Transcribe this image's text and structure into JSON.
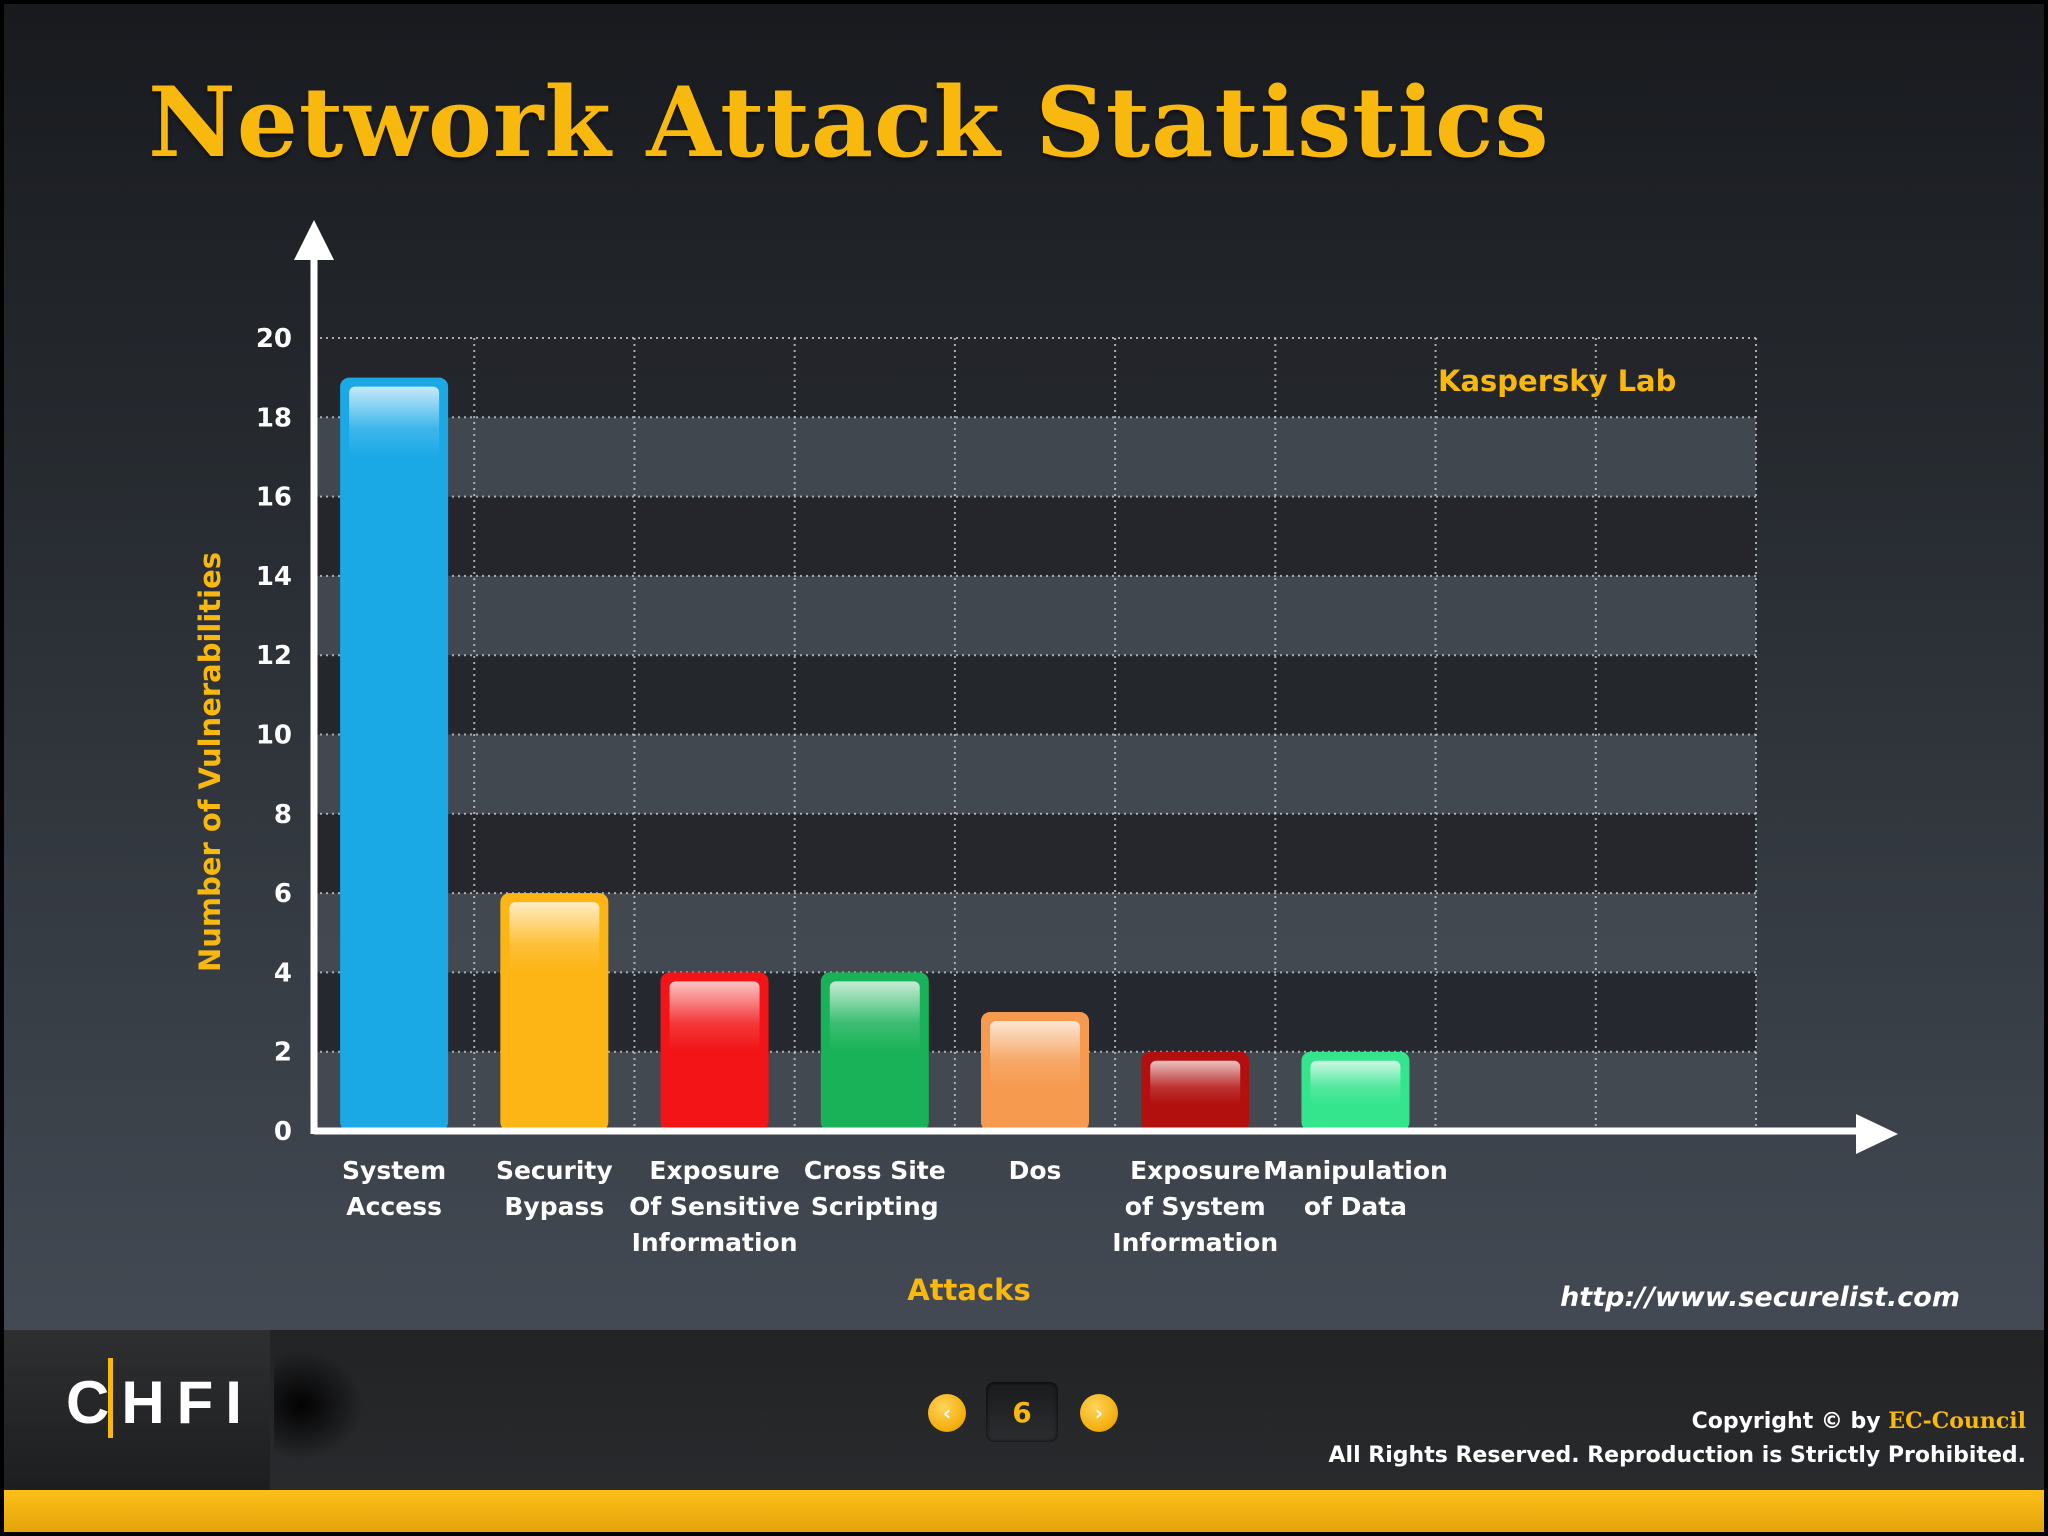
{
  "slide": {
    "title": "Network Attack Statistics",
    "url": "http://www.securelist.com"
  },
  "chart_data": {
    "type": "bar",
    "title": "",
    "xlabel": "Attacks",
    "ylabel": "Number of Vulnerabilities",
    "annotation": "Kaspersky Lab",
    "ylim": [
      0,
      20
    ],
    "yticks": [
      0,
      2,
      4,
      6,
      8,
      10,
      12,
      14,
      16,
      18,
      20
    ],
    "grid": true,
    "categories": [
      [
        "System",
        "Access"
      ],
      [
        "Security",
        "Bypass"
      ],
      [
        "Exposure",
        "Of Sensitive",
        "Information"
      ],
      [
        "Cross Site",
        "Scripting"
      ],
      [
        "Dos"
      ],
      [
        "Exposure",
        "of System",
        "Information"
      ],
      [
        "Manipulation",
        "of Data"
      ]
    ],
    "values": [
      19,
      6,
      4,
      4,
      3,
      2,
      2
    ],
    "colors": [
      "#1ba9e6",
      "#fdb515",
      "#f21416",
      "#19b258",
      "#f59a4e",
      "#b2100f",
      "#35e58e"
    ]
  },
  "footer": {
    "logo_text": "CHFI",
    "page_number": "6",
    "prev_icon": "‹",
    "next_icon": "›",
    "copyright_prefix": "Copyright © by ",
    "copyright_brand": "EC-Council",
    "rights": "All Rights Reserved. Reproduction is Strictly Prohibited."
  },
  "colors": {
    "accent": "#f9b80e",
    "text": "#ffffff"
  }
}
